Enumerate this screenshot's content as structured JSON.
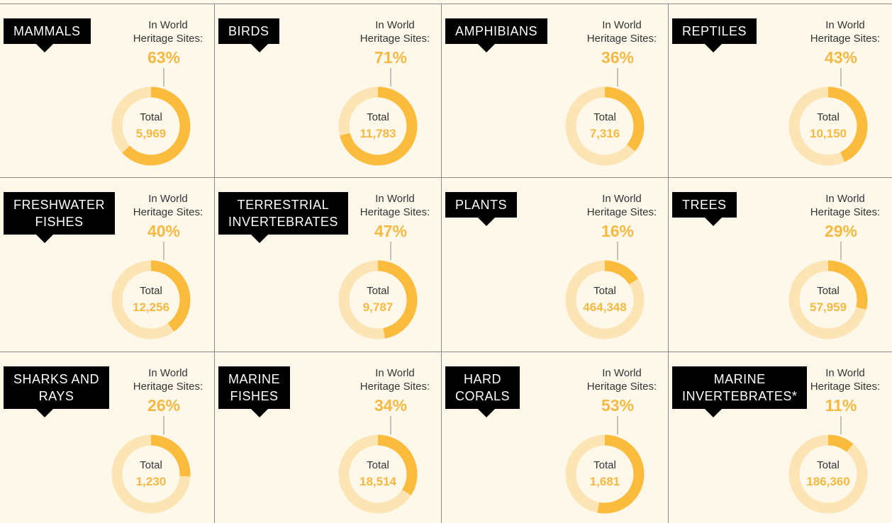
{
  "chart_data": [
    {
      "type": "donut",
      "title": "MAMMALS",
      "subtitle": "In World Heritage Sites:",
      "values": [
        63
      ],
      "value_labels": [
        "63%"
      ],
      "center_text": "Total",
      "total": {
        "value": 5969,
        "label": "5,969"
      }
    },
    {
      "type": "donut",
      "title": "BIRDS",
      "subtitle": "In World Heritage Sites:",
      "values": [
        71
      ],
      "value_labels": [
        "71%"
      ],
      "center_text": "Total",
      "total": {
        "value": 11783,
        "label": "11,783"
      }
    },
    {
      "type": "donut",
      "title": "AMPHIBIANS",
      "subtitle": "In World Heritage Sites:",
      "values": [
        36
      ],
      "value_labels": [
        "36%"
      ],
      "center_text": "Total",
      "total": {
        "value": 7316,
        "label": "7,316"
      }
    },
    {
      "type": "donut",
      "title": "REPTILES",
      "subtitle": "In World Heritage Sites:",
      "values": [
        43
      ],
      "value_labels": [
        "43%"
      ],
      "center_text": "Total",
      "total": {
        "value": 10150,
        "label": "10,150"
      }
    },
    {
      "type": "donut",
      "title": "FRESHWATER\nFISHES",
      "subtitle": "In World Heritage Sites:",
      "values": [
        40
      ],
      "value_labels": [
        "40%"
      ],
      "center_text": "Total",
      "total": {
        "value": 12256,
        "label": "12,256"
      }
    },
    {
      "type": "donut",
      "title": "TERRESTRIAL\nINVERTEBRATES",
      "subtitle": "In World Heritage Sites:",
      "values": [
        47
      ],
      "value_labels": [
        "47%"
      ],
      "center_text": "Total",
      "total": {
        "value": 9787,
        "label": "9,787"
      }
    },
    {
      "type": "donut",
      "title": "PLANTS",
      "subtitle": "In World Heritage Sites:",
      "values": [
        16
      ],
      "value_labels": [
        "16%"
      ],
      "center_text": "Total",
      "total": {
        "value": 464348,
        "label": "464,348"
      }
    },
    {
      "type": "donut",
      "title": "TREES",
      "subtitle": "In World Heritage Sites:",
      "values": [
        29
      ],
      "value_labels": [
        "29%"
      ],
      "center_text": "Total",
      "total": {
        "value": 57959,
        "label": "57,959"
      }
    },
    {
      "type": "donut",
      "title": "SHARKS AND\nRAYS",
      "subtitle": "In World Heritage Sites:",
      "values": [
        26
      ],
      "value_labels": [
        "26%"
      ],
      "center_text": "Total",
      "total": {
        "value": 1230,
        "label": "1,230"
      }
    },
    {
      "type": "donut",
      "title": "MARINE\nFISHES",
      "subtitle": "In World Heritage Sites:",
      "values": [
        34
      ],
      "value_labels": [
        "34%"
      ],
      "center_text": "Total",
      "total": {
        "value": 18514,
        "label": "18,514"
      }
    },
    {
      "type": "donut",
      "title": "HARD\nCORALS",
      "subtitle": "In World Heritage Sites:",
      "values": [
        53
      ],
      "value_labels": [
        "53%"
      ],
      "center_text": "Total",
      "total": {
        "value": 1681,
        "label": "1,681"
      }
    },
    {
      "type": "donut",
      "title": "MARINE\nINVERTEBRATES*",
      "subtitle": "In World Heritage Sites:",
      "values": [
        11
      ],
      "value_labels": [
        "11%"
      ],
      "center_text": "Total",
      "total": {
        "value": 186360,
        "label": "186,360"
      }
    }
  ]
}
